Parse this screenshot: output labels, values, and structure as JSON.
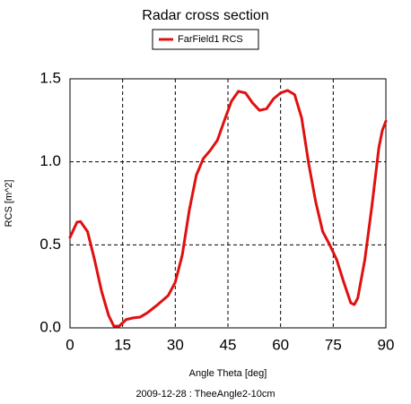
{
  "chart_data": {
    "type": "line",
    "title": "Radar cross section",
    "x_label": "Angle Theta [deg]",
    "y_label": "RCS [m^2]",
    "footer": "2009-12-28 : TheeAngle2-10cm",
    "legend": "top",
    "grid": true,
    "x": [
      0,
      2,
      3,
      5,
      7,
      9,
      11,
      12.5,
      14,
      16,
      18,
      20,
      22,
      25,
      28,
      30,
      32,
      34,
      36,
      38,
      40,
      42,
      44,
      46,
      48,
      50,
      52,
      54,
      56,
      58,
      60,
      62,
      64,
      66,
      68,
      70,
      72,
      74,
      76,
      78,
      80,
      81,
      82,
      84,
      86,
      88,
      89,
      90
    ],
    "series": [
      {
        "name": "FarField1 RCS",
        "color": "#e01010",
        "values": [
          0.545,
          0.637,
          0.64,
          0.58,
          0.41,
          0.22,
          0.075,
          0.01,
          0.01,
          0.05,
          0.06,
          0.065,
          0.09,
          0.14,
          0.195,
          0.275,
          0.44,
          0.71,
          0.92,
          1.02,
          1.07,
          1.13,
          1.25,
          1.365,
          1.425,
          1.415,
          1.355,
          1.31,
          1.32,
          1.38,
          1.415,
          1.43,
          1.405,
          1.265,
          0.99,
          0.76,
          0.58,
          0.5,
          0.41,
          0.275,
          0.15,
          0.14,
          0.18,
          0.41,
          0.73,
          1.085,
          1.19,
          1.245
        ]
      }
    ],
    "xlim": [
      0,
      90
    ],
    "xticks": [
      0,
      15,
      30,
      45,
      60,
      75,
      90
    ],
    "ylim": [
      0,
      1.5
    ],
    "yticks": [
      {
        "value": 0,
        "label": "0.0"
      },
      0.5,
      {
        "value": 1,
        "label": "1.0"
      },
      {
        "value": 1.5,
        "label": "1.5"
      }
    ]
  }
}
